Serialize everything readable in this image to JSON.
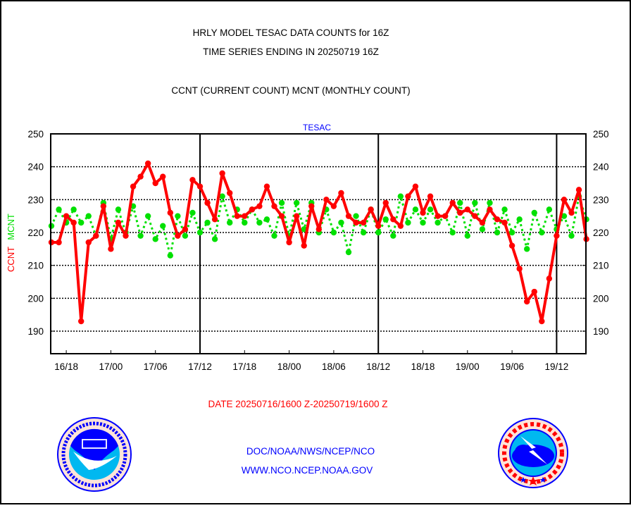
{
  "header": {
    "title_line1": "HRLY MODEL TESAC DATA COUNTS for 16Z",
    "title_line2": "TIME SERIES ENDING IN 20250719 16Z",
    "subtitle": "CCNT (CURRENT COUNT) MCNT (MONTHLY COUNT)"
  },
  "footer": {
    "date_range": "DATE 20250716/1600 Z-20250719/1600 Z",
    "org_path": "DOC/NOAA/NWS/NCEP/NCO",
    "website": "WWW.NCO.NCEP.NOAA.GOV"
  },
  "logos": {
    "noaa": {
      "center": "NOAA",
      "ring_top": "NATIONAL OCEANIC AND ATMOSPHERIC ADMINISTRATION",
      "ring_bottom": "U.S. DEPARTMENT OF COMMERCE"
    },
    "nws": {
      "ring": "NATIONAL WEATHER SERVICE"
    }
  },
  "colors": {
    "ccnt": "#ff0000",
    "mcnt": "#00e000",
    "title_blue": "#0000ff",
    "grid": "#000000"
  },
  "chart_data": {
    "type": "line",
    "title": "TESAC",
    "ylabel_left": [
      "CCNT",
      "MCNT"
    ],
    "ylim": [
      183,
      250
    ],
    "yticks": [
      190,
      200,
      210,
      220,
      230,
      240,
      250
    ],
    "x_start": "16/16",
    "x_step_hours": 1,
    "xtick_labels": [
      "16/18",
      "17/00",
      "17/06",
      "17/12",
      "17/18",
      "18/00",
      "18/06",
      "18/12",
      "18/18",
      "19/00",
      "19/06",
      "19/12"
    ],
    "xtick_hour_index": [
      2,
      8,
      14,
      20,
      26,
      32,
      38,
      44,
      50,
      56,
      62,
      68
    ],
    "day_separators_hour_index": [
      20,
      44,
      68
    ],
    "grid": "horizontal dotted",
    "series": [
      {
        "name": "CCNT",
        "color": "#ff0000",
        "style": "solid",
        "values": [
          217,
          217,
          225,
          223,
          193,
          217,
          219,
          228,
          215,
          223,
          219,
          234,
          237,
          241,
          235,
          237,
          226,
          219,
          221,
          236,
          234,
          229,
          224,
          238,
          232,
          225,
          225,
          227,
          228,
          234,
          228,
          225,
          217,
          225,
          216,
          228,
          221,
          230,
          228,
          232,
          225,
          223,
          223,
          227,
          222,
          229,
          224,
          222,
          231,
          234,
          226,
          231,
          225,
          225,
          229,
          226,
          227,
          225,
          223,
          227,
          224,
          223,
          216,
          209,
          199,
          202,
          193,
          206,
          219,
          230,
          226,
          233,
          218
        ]
      },
      {
        "name": "MCNT",
        "color": "#00e000",
        "style": "dotted",
        "values": [
          222,
          227,
          223,
          227,
          223,
          225,
          219,
          229,
          218,
          227,
          220,
          228,
          219,
          225,
          218,
          222,
          213,
          225,
          219,
          226,
          220,
          223,
          218,
          231,
          223,
          227,
          223,
          227,
          223,
          224,
          219,
          229,
          219,
          229,
          221,
          229,
          220,
          227,
          220,
          223,
          214,
          225,
          220,
          227,
          220,
          224,
          219,
          231,
          223,
          227,
          223,
          227,
          223,
          225,
          220,
          229,
          219,
          229,
          221,
          229,
          220,
          227,
          220,
          224,
          215,
          226,
          220,
          227,
          221,
          225,
          219,
          231,
          224
        ]
      }
    ]
  }
}
